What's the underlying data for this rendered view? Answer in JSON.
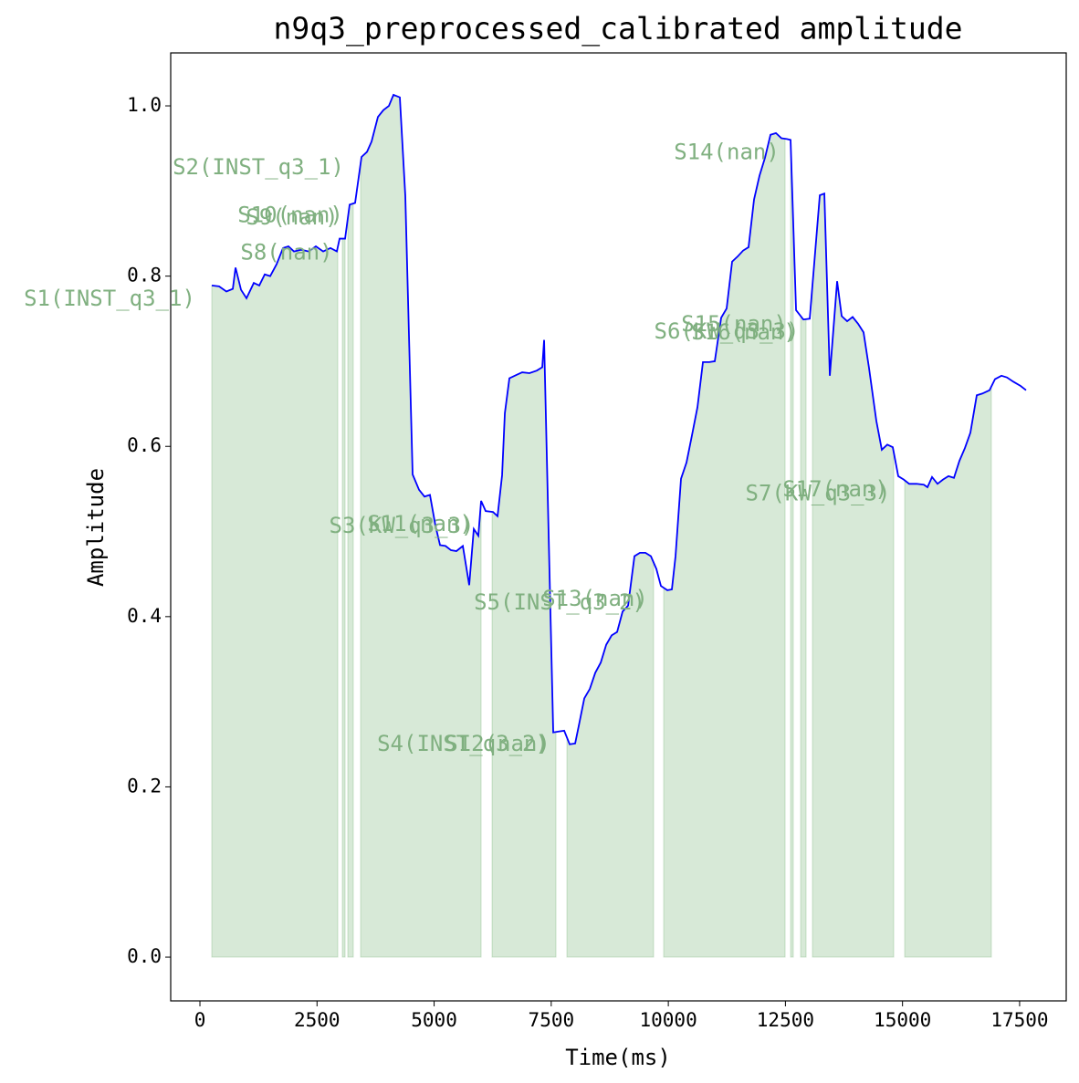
{
  "chart_data": {
    "type": "line",
    "title": "n9q3_preprocessed_calibrated amplitude",
    "xlabel": "Time(ms)",
    "ylabel": "Amplitude",
    "x": [
      253,
      409,
      565,
      702,
      760,
      877,
      994,
      1150,
      1267,
      1384,
      1500,
      1637,
      1774,
      1890,
      2007,
      2163,
      2319,
      2475,
      2631,
      2787,
      2923,
      2982,
      3099,
      3196,
      3313,
      3450,
      3567,
      3664,
      3800,
      3917,
      4034,
      4132,
      4268,
      4385,
      4541,
      4678,
      4795,
      4911,
      5028,
      5126,
      5243,
      5360,
      5476,
      5613,
      5749,
      5847,
      5944,
      6003,
      6100,
      6256,
      6354,
      6451,
      6510,
      6607,
      6763,
      6880,
      7036,
      7192,
      7309,
      7348,
      7543,
      7660,
      7777,
      7894,
      8011,
      8089,
      8206,
      8323,
      8440,
      8557,
      8674,
      8790,
      8907,
      9024,
      9141,
      9277,
      9394,
      9511,
      9628,
      9745,
      9842,
      9979,
      10076,
      10154,
      10271,
      10388,
      10505,
      10622,
      10739,
      10875,
      10992,
      11128,
      11245,
      11362,
      11479,
      11596,
      11713,
      11830,
      11947,
      12064,
      12181,
      12298,
      12415,
      12532,
      12610,
      12727,
      12883,
      13019,
      13234,
      13331,
      13448,
      13604,
      13701,
      13818,
      13935,
      14052,
      14168,
      14285,
      14441,
      14558,
      14675,
      14792,
      14909,
      15026,
      15143,
      15299,
      15455,
      15533,
      15630,
      15747,
      15864,
      15981,
      16098,
      16215,
      16332,
      16449,
      16585,
      16702,
      16858,
      16975,
      17112,
      17229,
      17365,
      17521,
      17638
    ],
    "series": [
      {
        "color": "#0000ff",
        "values": [
          0.789,
          0.788,
          0.782,
          0.785,
          0.81,
          0.784,
          0.774,
          0.792,
          0.789,
          0.802,
          0.8,
          0.814,
          0.833,
          0.835,
          0.829,
          0.831,
          0.829,
          0.835,
          0.829,
          0.833,
          0.829,
          0.844,
          0.844,
          0.884,
          0.886,
          0.94,
          0.946,
          0.958,
          0.987,
          0.995,
          1.0,
          1.013,
          1.01,
          0.894,
          0.567,
          0.549,
          0.541,
          0.543,
          0.507,
          0.484,
          0.483,
          0.478,
          0.477,
          0.483,
          0.437,
          0.503,
          0.495,
          0.536,
          0.524,
          0.523,
          0.518,
          0.566,
          0.639,
          0.68,
          0.684,
          0.687,
          0.686,
          0.689,
          0.693,
          0.725,
          0.264,
          0.265,
          0.266,
          0.25,
          0.251,
          0.272,
          0.304,
          0.315,
          0.334,
          0.346,
          0.367,
          0.378,
          0.382,
          0.406,
          0.413,
          0.471,
          0.475,
          0.475,
          0.471,
          0.456,
          0.436,
          0.431,
          0.432,
          0.471,
          0.562,
          0.581,
          0.613,
          0.646,
          0.699,
          0.699,
          0.7,
          0.751,
          0.762,
          0.817,
          0.823,
          0.83,
          0.834,
          0.89,
          0.918,
          0.939,
          0.966,
          0.968,
          0.962,
          0.961,
          0.96,
          0.76,
          0.749,
          0.75,
          0.895,
          0.897,
          0.683,
          0.794,
          0.753,
          0.747,
          0.752,
          0.744,
          0.734,
          0.692,
          0.63,
          0.596,
          0.602,
          0.599,
          0.565,
          0.561,
          0.556,
          0.556,
          0.555,
          0.552,
          0.564,
          0.556,
          0.561,
          0.565,
          0.563,
          0.583,
          0.598,
          0.616,
          0.66,
          0.662,
          0.666,
          0.679,
          0.683,
          0.681,
          0.676,
          0.671,
          0.666
        ]
      }
    ],
    "segment_color": "#4a9a4a",
    "segments": [
      {
        "start": 253,
        "end": 2943
      },
      {
        "start": 3040,
        "end": 3099
      },
      {
        "start": 3157,
        "end": 3274
      },
      {
        "start": 3430,
        "end": 6003
      },
      {
        "start": 6237,
        "end": 7601
      },
      {
        "start": 7835,
        "end": 9686
      },
      {
        "start": 9900,
        "end": 12493
      },
      {
        "start": 12610,
        "end": 12668
      },
      {
        "start": 12824,
        "end": 12941
      },
      {
        "start": 13077,
        "end": 14812
      },
      {
        "start": 15046,
        "end": 16897
      }
    ],
    "annotation_color": "#80b080",
    "annotations": [
      {
        "text": "S1(INST_q3_1)",
        "x": -1930,
        "y": 0.773
      },
      {
        "text": "S2(INST_q3_1)",
        "x": 1247,
        "y": 0.927
      },
      {
        "text": "S10(nan)",
        "x": 1930,
        "y": 0.871
      },
      {
        "text": "S9(nan)",
        "x": 1968,
        "y": 0.868
      },
      {
        "text": "S8(nan)",
        "x": 1851,
        "y": 0.827
      },
      {
        "text": "S3(KW_q3_3)",
        "x": 4307,
        "y": 0.506
      },
      {
        "text": "S11(nan)",
        "x": 4697,
        "y": 0.508
      },
      {
        "text": "S4(INST_q3_2)",
        "x": 5613,
        "y": 0.25
      },
      {
        "text": "S12(nan)",
        "x": 6354,
        "y": 0.25
      },
      {
        "text": "S5(INST_q3_2)",
        "x": 7679,
        "y": 0.416
      },
      {
        "text": "S13(nan)",
        "x": 8439,
        "y": 0.42
      },
      {
        "text": "S14(nan)",
        "x": 11245,
        "y": 0.945
      },
      {
        "text": "S6(KW_q3_3)",
        "x": 11245,
        "y": 0.734
      },
      {
        "text": "S16(nan)",
        "x": 11616,
        "y": 0.733
      },
      {
        "text": "S15(nan)",
        "x": 11401,
        "y": 0.743
      },
      {
        "text": "S7(KW_q3_3)",
        "x": 13194,
        "y": 0.544
      },
      {
        "text": "S17(nan)",
        "x": 13565,
        "y": 0.549
      }
    ],
    "xlim": [
      -624,
      18495
    ],
    "ylim": [
      -0.0514,
      1.0622
    ],
    "xticks": [
      0,
      2500,
      5000,
      7500,
      10000,
      12500,
      15000,
      17500
    ],
    "yticks": [
      {
        "value": 0,
        "label": "0.0"
      },
      {
        "value": 0.2,
        "label": "0.2"
      },
      {
        "value": 0.4,
        "label": "0.4"
      },
      {
        "value": 0.6,
        "label": "0.6"
      },
      {
        "value": 0.8,
        "label": "0.8"
      },
      {
        "value": 1,
        "label": "1.0"
      }
    ]
  }
}
